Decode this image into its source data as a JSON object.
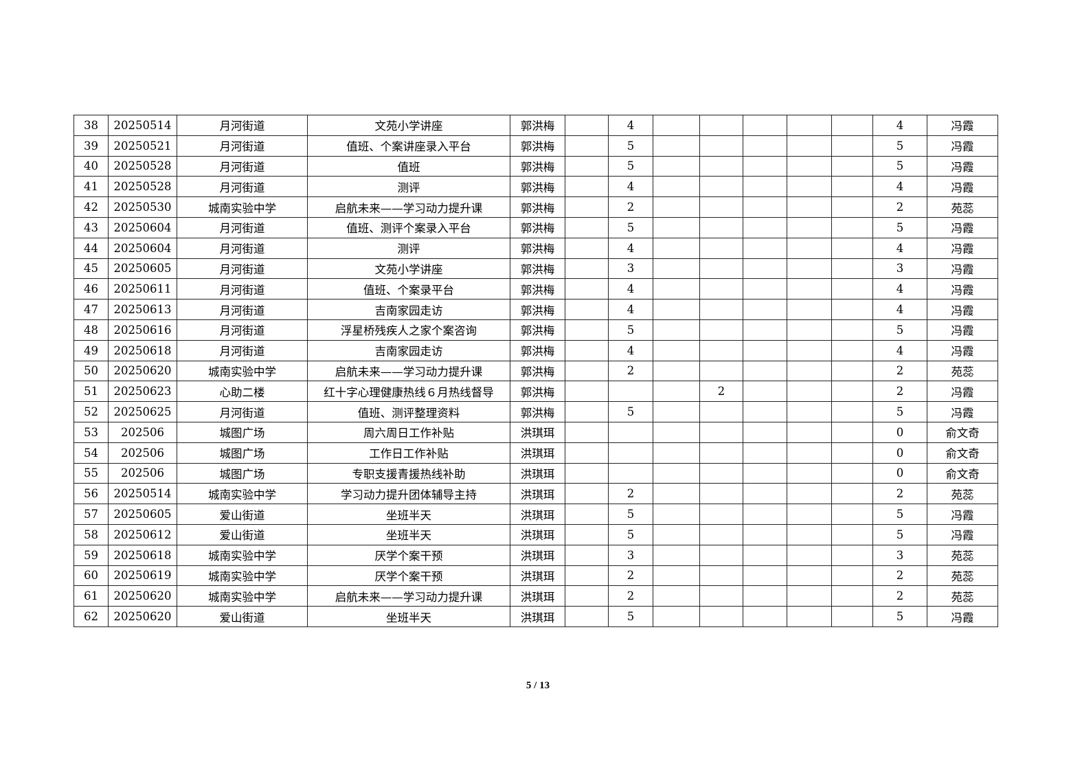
{
  "table": {
    "rows": [
      [
        "38",
        "20250514",
        "月河街道",
        "文苑小学讲座",
        "郭洪梅",
        "",
        "4",
        "",
        "",
        "",
        "",
        "",
        "4",
        "冯霞"
      ],
      [
        "39",
        "20250521",
        "月河街道",
        "值班、个案讲座录入平台",
        "郭洪梅",
        "",
        "5",
        "",
        "",
        "",
        "",
        "",
        "5",
        "冯霞"
      ],
      [
        "40",
        "20250528",
        "月河街道",
        "值班",
        "郭洪梅",
        "",
        "5",
        "",
        "",
        "",
        "",
        "",
        "5",
        "冯霞"
      ],
      [
        "41",
        "20250528",
        "月河街道",
        "测评",
        "郭洪梅",
        "",
        "4",
        "",
        "",
        "",
        "",
        "",
        "4",
        "冯霞"
      ],
      [
        "42",
        "20250530",
        "城南实验中学",
        "启航未来——学习动力提升课",
        "郭洪梅",
        "",
        "2",
        "",
        "",
        "",
        "",
        "",
        "2",
        "苑蕊"
      ],
      [
        "43",
        "20250604",
        "月河街道",
        "值班、测评个案录入平台",
        "郭洪梅",
        "",
        "5",
        "",
        "",
        "",
        "",
        "",
        "5",
        "冯霞"
      ],
      [
        "44",
        "20250604",
        "月河街道",
        "测评",
        "郭洪梅",
        "",
        "4",
        "",
        "",
        "",
        "",
        "",
        "4",
        "冯霞"
      ],
      [
        "45",
        "20250605",
        "月河街道",
        "文苑小学讲座",
        "郭洪梅",
        "",
        "3",
        "",
        "",
        "",
        "",
        "",
        "3",
        "冯霞"
      ],
      [
        "46",
        "20250611",
        "月河街道",
        "值班、个案录平台",
        "郭洪梅",
        "",
        "4",
        "",
        "",
        "",
        "",
        "",
        "4",
        "冯霞"
      ],
      [
        "47",
        "20250613",
        "月河街道",
        "吉南家园走访",
        "郭洪梅",
        "",
        "4",
        "",
        "",
        "",
        "",
        "",
        "4",
        "冯霞"
      ],
      [
        "48",
        "20250616",
        "月河街道",
        "浮星桥残疾人之家个案咨询",
        "郭洪梅",
        "",
        "5",
        "",
        "",
        "",
        "",
        "",
        "5",
        "冯霞"
      ],
      [
        "49",
        "20250618",
        "月河街道",
        "吉南家园走访",
        "郭洪梅",
        "",
        "4",
        "",
        "",
        "",
        "",
        "",
        "4",
        "冯霞"
      ],
      [
        "50",
        "20250620",
        "城南实验中学",
        "启航未来——学习动力提升课",
        "郭洪梅",
        "",
        "2",
        "",
        "",
        "",
        "",
        "",
        "2",
        "苑蕊"
      ],
      [
        "51",
        "20250623",
        "心助二楼",
        "红十字心理健康热线６月热线督导",
        "郭洪梅",
        "",
        "",
        "",
        "2",
        "",
        "",
        "",
        "2",
        "冯霞"
      ],
      [
        "52",
        "20250625",
        "月河街道",
        "值班、测评整理资料",
        "郭洪梅",
        "",
        "5",
        "",
        "",
        "",
        "",
        "",
        "5",
        "冯霞"
      ],
      [
        "53",
        "202506",
        "城图广场",
        "周六周日工作补贴",
        "洪琪珥",
        "",
        "",
        "",
        "",
        "",
        "",
        "",
        "0",
        "俞文奇"
      ],
      [
        "54",
        "202506",
        "城图广场",
        "工作日工作补贴",
        "洪琪珥",
        "",
        "",
        "",
        "",
        "",
        "",
        "",
        "0",
        "俞文奇"
      ],
      [
        "55",
        "202506",
        "城图广场",
        "专职支援青援热线补助",
        "洪琪珥",
        "",
        "",
        "",
        "",
        "",
        "",
        "",
        "0",
        "俞文奇"
      ],
      [
        "56",
        "20250514",
        "城南实验中学",
        "学习动力提升团体辅导主持",
        "洪琪珥",
        "",
        "2",
        "",
        "",
        "",
        "",
        "",
        "2",
        "苑蕊"
      ],
      [
        "57",
        "20250605",
        "爱山街道",
        "坐班半天",
        "洪琪珥",
        "",
        "5",
        "",
        "",
        "",
        "",
        "",
        "5",
        "冯霞"
      ],
      [
        "58",
        "20250612",
        "爱山街道",
        "坐班半天",
        "洪琪珥",
        "",
        "5",
        "",
        "",
        "",
        "",
        "",
        "5",
        "冯霞"
      ],
      [
        "59",
        "20250618",
        "城南实验中学",
        "厌学个案干预",
        "洪琪珥",
        "",
        "3",
        "",
        "",
        "",
        "",
        "",
        "3",
        "苑蕊"
      ],
      [
        "60",
        "20250619",
        "城南实验中学",
        "厌学个案干预",
        "洪琪珥",
        "",
        "2",
        "",
        "",
        "",
        "",
        "",
        "2",
        "苑蕊"
      ],
      [
        "61",
        "20250620",
        "城南实验中学",
        "启航未来——学习动力提升课",
        "洪琪珥",
        "",
        "2",
        "",
        "",
        "",
        "",
        "",
        "2",
        "苑蕊"
      ],
      [
        "62",
        "20250620",
        "爱山街道",
        "坐班半天",
        "洪琪珥",
        "",
        "5",
        "",
        "",
        "",
        "",
        "",
        "5",
        "冯霞"
      ]
    ]
  },
  "footer": {
    "page": "5 / 13"
  }
}
